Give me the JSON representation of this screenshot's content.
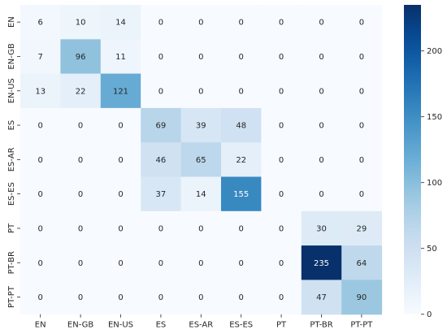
{
  "chart_data": {
    "type": "heatmap",
    "title": "",
    "xlabel": "",
    "ylabel": "",
    "x_categories": [
      "EN",
      "EN-GB",
      "EN-US",
      "ES",
      "ES-AR",
      "ES-ES",
      "PT",
      "PT-BR",
      "PT-PT"
    ],
    "y_categories": [
      "EN",
      "EN-GB",
      "EN-US",
      "ES",
      "ES-AR",
      "ES-ES",
      "PT",
      "PT-BR",
      "PT-PT"
    ],
    "values": [
      [
        6,
        10,
        14,
        0,
        0,
        0,
        0,
        0,
        0
      ],
      [
        7,
        96,
        11,
        0,
        0,
        0,
        0,
        0,
        0
      ],
      [
        13,
        22,
        121,
        0,
        0,
        0,
        0,
        0,
        0
      ],
      [
        0,
        0,
        0,
        69,
        39,
        48,
        0,
        0,
        0
      ],
      [
        0,
        0,
        0,
        46,
        65,
        22,
        0,
        0,
        0
      ],
      [
        0,
        0,
        0,
        37,
        14,
        155,
        0,
        0,
        0
      ],
      [
        0,
        0,
        0,
        0,
        0,
        0,
        0,
        30,
        29
      ],
      [
        0,
        0,
        0,
        0,
        0,
        0,
        0,
        235,
        64
      ],
      [
        0,
        0,
        0,
        0,
        0,
        0,
        0,
        47,
        90
      ]
    ],
    "colormap": "Blues",
    "color_range": [
      0,
      235
    ],
    "colorbar_ticks": [
      0,
      50,
      100,
      150,
      200
    ],
    "annotations": true,
    "grid": false,
    "legend": "colorbar-right"
  }
}
